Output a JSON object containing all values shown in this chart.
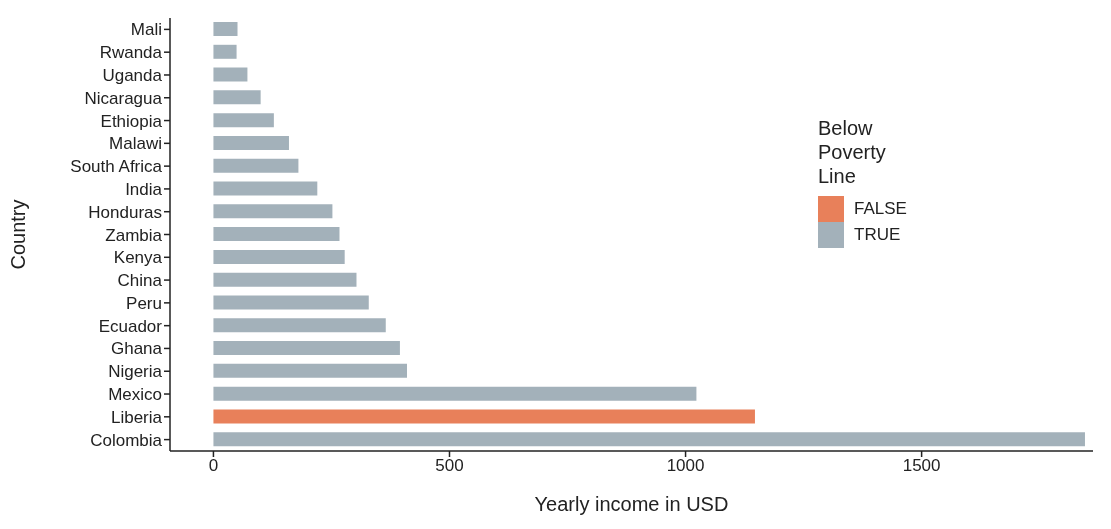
{
  "chart_data": {
    "type": "bar",
    "orientation": "horizontal",
    "stacked": true,
    "xlabel": "Yearly income in USD",
    "ylabel": "Country",
    "legend_title": "Below Poverty Line",
    "legend": "right",
    "grid": false,
    "categories": [
      "Mali",
      "Rwanda",
      "Uganda",
      "Nicaragua",
      "Ethiopia",
      "Malawi",
      "South Africa",
      "India",
      "Honduras",
      "Zambia",
      "Kenya",
      "China",
      "Peru",
      "Ecuador",
      "Ghana",
      "Nigeria",
      "Mexico",
      "Liberia",
      "Colombia"
    ],
    "series": [
      {
        "name": "FALSE",
        "color": "#e8805a",
        "values": [
          null,
          null,
          null,
          null,
          null,
          null,
          null,
          null,
          null,
          null,
          null,
          null,
          null,
          null,
          null,
          null,
          null,
          1147,
          null
        ]
      },
      {
        "name": "TRUE",
        "color": "#a3b1ba",
        "values": [
          51,
          49,
          72,
          100,
          128,
          160,
          180,
          220,
          252,
          267,
          278,
          303,
          329,
          365,
          395,
          410,
          1023,
          null,
          1846
        ]
      }
    ],
    "xlim": [
      -92,
      1863
    ],
    "xticks": [
      0,
      500,
      1000,
      1500
    ]
  }
}
